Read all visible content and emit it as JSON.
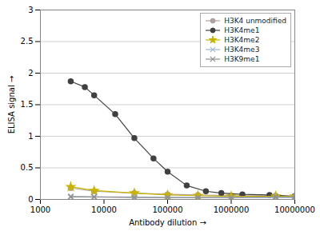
{
  "chart_data": {
    "type": "line",
    "xlabel": "Antibody dilution",
    "ylabel": "ELISA signal",
    "log": "x",
    "grid": "y",
    "legend": "upper right",
    "xlim": [
      1000,
      10000000
    ],
    "xticks": [
      1000,
      10000,
      100000,
      1000000,
      10000000
    ],
    "ylim": [
      0,
      3
    ],
    "yticks": [
      0,
      0.5,
      1,
      1.5,
      2,
      2.5,
      3
    ],
    "series": [
      {
        "name": "H3K4 unmodified",
        "color": "#b0a0a0",
        "marker": "circle",
        "line_style": "solid",
        "x": [
          3000,
          7000,
          30000,
          100000,
          300000,
          1000000,
          5000000,
          10000000
        ],
        "values": [
          0.18,
          0.13,
          0.1,
          0.08,
          0.07,
          0.06,
          0.06,
          0.05
        ]
      },
      {
        "name": "H3K4me1",
        "color": "#404040",
        "marker": "circle",
        "line_style": "solid",
        "x": [
          3000,
          5000,
          7000,
          15000,
          30000,
          60000,
          100000,
          200000,
          400000,
          700000,
          1500000,
          4000000,
          10000000
        ],
        "values": [
          1.87,
          1.78,
          1.65,
          1.35,
          0.97,
          0.65,
          0.44,
          0.22,
          0.13,
          0.1,
          0.08,
          0.07,
          0.05
        ]
      },
      {
        "name": "H3K4me2",
        "color": "#c8b400",
        "marker": "star",
        "line_style": "solid",
        "x": [
          3000,
          7000,
          30000,
          100000,
          300000,
          1000000,
          5000000,
          10000000
        ],
        "values": [
          0.2,
          0.14,
          0.1,
          0.07,
          0.06,
          0.05,
          0.05,
          0.05
        ]
      },
      {
        "name": "H3K4me3",
        "color": "#a0b8d0",
        "marker": "times",
        "line_style": "solid",
        "x": [
          3000,
          7000,
          30000,
          100000,
          300000,
          1000000,
          5000000,
          10000000
        ],
        "values": [
          0.05,
          0.04,
          0.04,
          0.03,
          0.03,
          0.03,
          0.03,
          0.03
        ]
      },
      {
        "name": "H3K9me1",
        "color": "#909090",
        "marker": "times",
        "line_style": "solid",
        "x": [
          3000,
          7000,
          30000,
          100000,
          300000,
          1000000,
          5000000,
          10000000
        ],
        "values": [
          0.04,
          0.04,
          0.03,
          0.03,
          0.03,
          0.03,
          0.04,
          0.04
        ]
      }
    ]
  }
}
